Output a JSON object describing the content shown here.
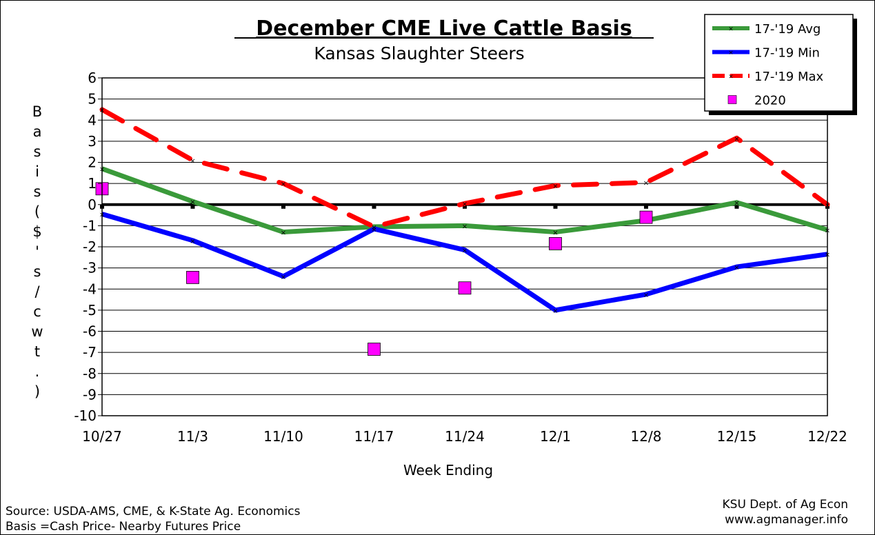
{
  "chart_data": {
    "type": "line",
    "title": "December CME Live Cattle Basis",
    "subtitle": "Kansas Slaughter Steers",
    "xlabel": "Week Ending",
    "ylabel": "Basis ($'s/cwt.)",
    "ylabel_chars": [
      "B",
      "a",
      "s",
      "i",
      "s",
      "(",
      "$",
      "'",
      "s",
      "/",
      "c",
      "w",
      "t",
      ".",
      ")"
    ],
    "categories": [
      "10/27",
      "11/3",
      "11/10",
      "11/17",
      "11/24",
      "12/1",
      "12/8",
      "12/15",
      "12/22"
    ],
    "ylim": [
      -10,
      6
    ],
    "yticks": [
      "6",
      "5",
      "4",
      "3",
      "2",
      "1",
      "0",
      "-1",
      "-2",
      "-3",
      "-4",
      "-5",
      "-6",
      "-7",
      "-8",
      "-9",
      "-10"
    ],
    "grid": "horizontal",
    "legend_position": "top-right",
    "series": [
      {
        "name": "17-'19 Avg",
        "color": "#3a9a3a",
        "style": "solid",
        "values": [
          1.7,
          0.15,
          -1.3,
          -1.05,
          -1.0,
          -1.3,
          -0.75,
          0.1,
          -1.2
        ]
      },
      {
        "name": "17-'19 Min",
        "color": "#0000ff",
        "style": "solid",
        "values": [
          -0.45,
          -1.7,
          -3.4,
          -1.15,
          -2.15,
          -5.0,
          -4.25,
          -2.95,
          -2.35
        ]
      },
      {
        "name": "17-'19 Max",
        "color": "#ff0000",
        "style": "dashed",
        "values": [
          4.5,
          2.1,
          1.0,
          -1.05,
          0.05,
          0.9,
          1.05,
          3.15,
          0.0
        ]
      },
      {
        "name": "2020",
        "color": "#ff00ff",
        "style": "markers",
        "values": [
          0.75,
          -3.45,
          null,
          -6.85,
          -3.95,
          -1.85,
          -0.6,
          null,
          null
        ]
      }
    ],
    "footnote_left": [
      "Source:  USDA-AMS, CME, & K-State Ag. Economics",
      "Basis =Cash Price- Nearby Futures Price"
    ],
    "footnote_right": [
      "KSU Dept. of Ag Econ",
      "www.agmanager.info"
    ]
  }
}
